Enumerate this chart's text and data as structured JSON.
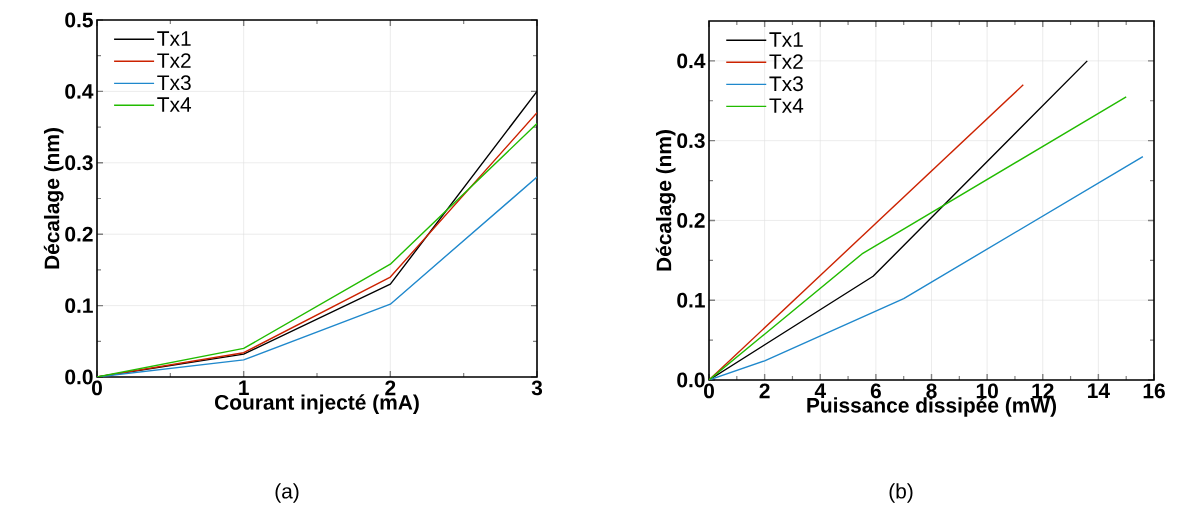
{
  "chart_data": [
    {
      "type": "line",
      "xlabel": "Courant injecté (mA)",
      "ylabel": "Décalage (nm)",
      "xlim": [
        0,
        3
      ],
      "ylim": [
        0,
        0.5
      ],
      "xticks": [
        0,
        1,
        2,
        3
      ],
      "yticks": [
        {
          "value": 0,
          "label": "0.0"
        },
        0.1,
        0.2,
        0.3,
        0.4,
        0.5
      ],
      "grid": true,
      "legend": "top left",
      "annotations": [
        "(a)"
      ],
      "series": [
        {
          "name": "Tx1",
          "color": "#000000",
          "x": [
            0,
            1,
            2,
            3
          ],
          "values": [
            0,
            0.032,
            0.13,
            0.4
          ]
        },
        {
          "name": "Tx2",
          "color": "#cc2200",
          "x": [
            0,
            1,
            2,
            3
          ],
          "values": [
            0,
            0.034,
            0.14,
            0.37
          ]
        },
        {
          "name": "Tx3",
          "color": "#1f88cc",
          "x": [
            0,
            1,
            2,
            3
          ],
          "values": [
            0,
            0.024,
            0.102,
            0.28
          ]
        },
        {
          "name": "Tx4",
          "color": "#22bb00",
          "x": [
            0,
            1,
            2,
            3
          ],
          "values": [
            0,
            0.04,
            0.158,
            0.355
          ]
        }
      ]
    },
    {
      "type": "line",
      "xlabel": "Puissance dissipée (mW)",
      "ylabel": "Décalage (nm)",
      "xlim": [
        0,
        16
      ],
      "ylim": [
        0,
        0.45
      ],
      "xticks": [
        0,
        2,
        4,
        6,
        8,
        10,
        12,
        14,
        16
      ],
      "yticks": [
        {
          "value": 0,
          "label": "0.0"
        },
        0.1,
        0.2,
        0.3,
        0.4
      ],
      "grid": true,
      "legend": "top left",
      "annotations": [
        "(b)"
      ],
      "series": [
        {
          "name": "Tx1",
          "color": "#000000",
          "x": [
            0,
            5.9,
            13.6
          ],
          "values": [
            0,
            0.13,
            0.4
          ]
        },
        {
          "name": "Tx2",
          "color": "#cc2200",
          "x": [
            0,
            11.3
          ],
          "values": [
            0,
            0.37
          ]
        },
        {
          "name": "Tx3",
          "color": "#1f88cc",
          "x": [
            0,
            2.0,
            7.0,
            15.6
          ],
          "values": [
            0,
            0.024,
            0.102,
            0.28
          ]
        },
        {
          "name": "Tx4",
          "color": "#22bb00",
          "x": [
            0,
            5.5,
            15.0
          ],
          "values": [
            0,
            0.158,
            0.355
          ]
        }
      ]
    }
  ]
}
